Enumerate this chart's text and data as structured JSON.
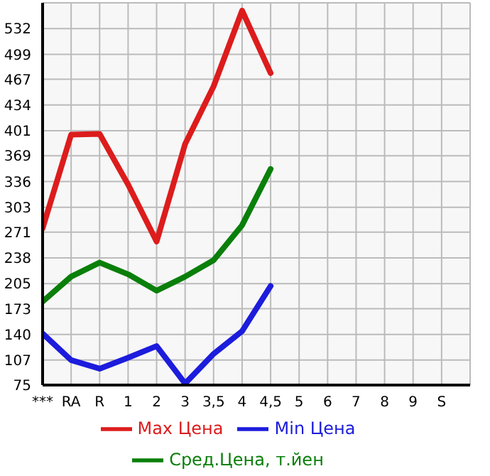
{
  "chart_data": {
    "type": "line",
    "categories": [
      "***",
      "RA",
      "R",
      "1",
      "2",
      "3",
      "3,5",
      "4",
      "4,5",
      "5",
      "6",
      "7",
      "8",
      "9",
      "S"
    ],
    "series": [
      {
        "name": "Max Цена",
        "color": "#dd1c1c",
        "values": [
          276,
          396,
          397,
          332,
          259,
          384,
          458,
          555,
          475,
          null,
          null,
          null,
          null,
          null,
          null
        ]
      },
      {
        "name": "Min Цена",
        "color": "#1c1cdd",
        "values": [
          141,
          107,
          96,
          110,
          125,
          77,
          115,
          144,
          202,
          null,
          null,
          null,
          null,
          null,
          null
        ]
      },
      {
        "name": "Сред.Цена, т.йен",
        "color": "#0a7f0a",
        "values": [
          182,
          214,
          232,
          217,
          196,
          214,
          235,
          280,
          352,
          null,
          null,
          null,
          null,
          null,
          null
        ]
      }
    ],
    "ylim": [
      75,
      565
    ],
    "yticks": [
      75,
      107,
      140,
      173,
      205,
      238,
      271,
      303,
      336,
      369,
      401,
      434,
      467,
      499,
      532
    ],
    "grid": true,
    "legend": "bottom",
    "marker": "none",
    "line_style": "solid"
  }
}
